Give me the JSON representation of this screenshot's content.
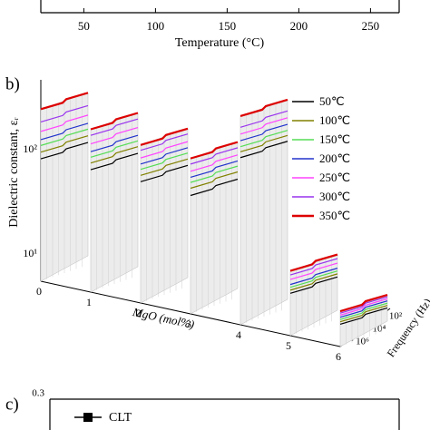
{
  "chart_data": [
    {
      "type": "axis",
      "xlabel": "Temperature (°C)",
      "xlim": [
        20,
        270
      ],
      "xticks": [
        50,
        100,
        150,
        200,
        250
      ]
    },
    {
      "type": "waterfall",
      "panel_label": "b)",
      "ylabel": "Dielectric constant, εᵣ",
      "xlabel": "MgO (mol%)",
      "zlabel": "Frequency (Hz)",
      "log_y": true,
      "ylim": [
        5.5,
        450
      ],
      "yticks": [
        {
          "value": 10,
          "label": "10¹"
        },
        {
          "value": 100,
          "label": "10²"
        }
      ],
      "x": [
        0,
        1,
        2,
        3,
        4,
        5,
        6
      ],
      "xlim": [
        0,
        6
      ],
      "xticks": [
        0,
        1,
        2,
        3,
        4,
        5,
        6
      ],
      "log_z": true,
      "zlim": [
        10000000,
        10
      ],
      "zticks": [
        {
          "value": 1000000,
          "label": "10⁶"
        },
        {
          "value": 10000,
          "label": "10⁴"
        },
        {
          "value": 100,
          "label": "10²"
        }
      ],
      "series": [
        {
          "name": "50℃",
          "color": "#000000",
          "values": [
            82,
            82,
            80,
            75,
            220,
            14,
            9
          ]
        },
        {
          "name": "100℃",
          "color": "#808000",
          "values": [
            95,
            95,
            92,
            88,
            250,
            15,
            9.5
          ]
        },
        {
          "name": "150℃",
          "color": "#55dd55",
          "values": [
            110,
            108,
            105,
            100,
            280,
            16,
            10
          ]
        },
        {
          "name": "200℃",
          "color": "#2233cc",
          "values": [
            125,
            122,
            118,
            112,
            320,
            17,
            10.5
          ]
        },
        {
          "name": "250℃",
          "color": "#ff44ff",
          "values": [
            150,
            145,
            135,
            128,
            370,
            19,
            11
          ]
        },
        {
          "name": "300℃",
          "color": "#9933ee",
          "values": [
            185,
            175,
            160,
            150,
            430,
            21,
            11.5
          ]
        },
        {
          "name": "350℃",
          "color": "#dd0000",
          "values": [
            245,
            200,
            180,
            170,
            550,
            23,
            12
          ]
        }
      ]
    },
    {
      "type": "axis",
      "panel_label": "c)",
      "yticks": [
        0.3
      ],
      "legend": [
        "CLT"
      ]
    }
  ]
}
